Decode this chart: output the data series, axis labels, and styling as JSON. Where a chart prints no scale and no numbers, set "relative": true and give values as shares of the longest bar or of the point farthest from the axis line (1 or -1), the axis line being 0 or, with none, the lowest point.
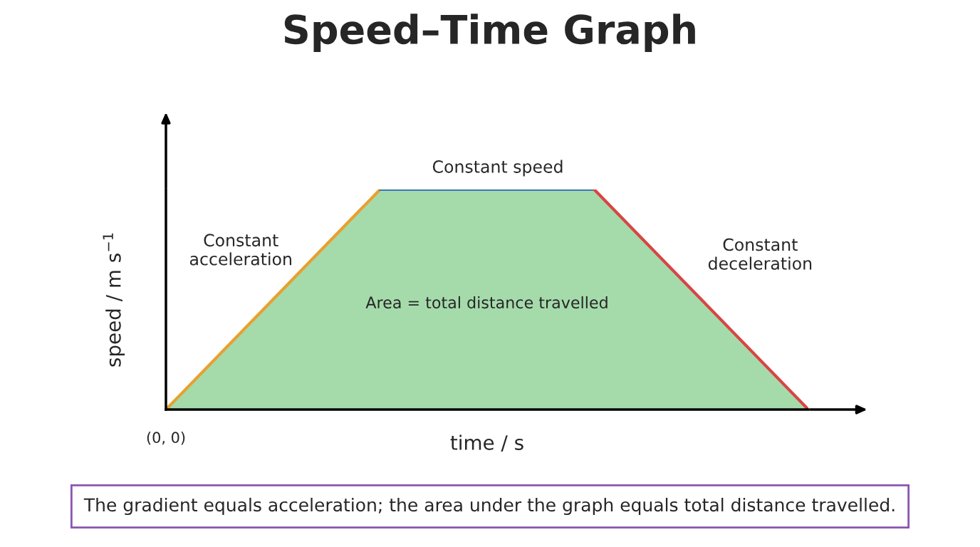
{
  "chart_data": {
    "type": "line",
    "title": "Speed–Time Graph",
    "xlabel": "time / s",
    "ylabel": "speed / m s$^{−1}$",
    "relative": true,
    "categories": [
      null,
      null,
      null,
      null,
      null,
      null,
      null
    ],
    "series": [
      {
        "type": "area",
        "color": "#a5dbab",
        "values": [
          0,
          0.5,
          1,
          1,
          1,
          0.5,
          0
        ]
      },
      {
        "color": "#e8a030",
        "values": [
          0,
          0.5,
          1,
          null,
          null,
          null,
          null
        ]
      },
      {
        "color": "#3a78b8",
        "values": [
          null,
          null,
          1,
          1,
          1,
          null,
          null
        ]
      },
      {
        "color": "#d84545",
        "values": [
          null,
          null,
          null,
          null,
          1,
          0.5,
          0
        ]
      }
    ],
    "annotations": [
      "Constant speed",
      "Constant\nacceleration",
      "Constant\ndeceleration",
      "Area = total distance travelled",
      "(0, 0)",
      "The gradient equals acceleration; the area under the graph equals total distance travelled."
    ]
  }
}
